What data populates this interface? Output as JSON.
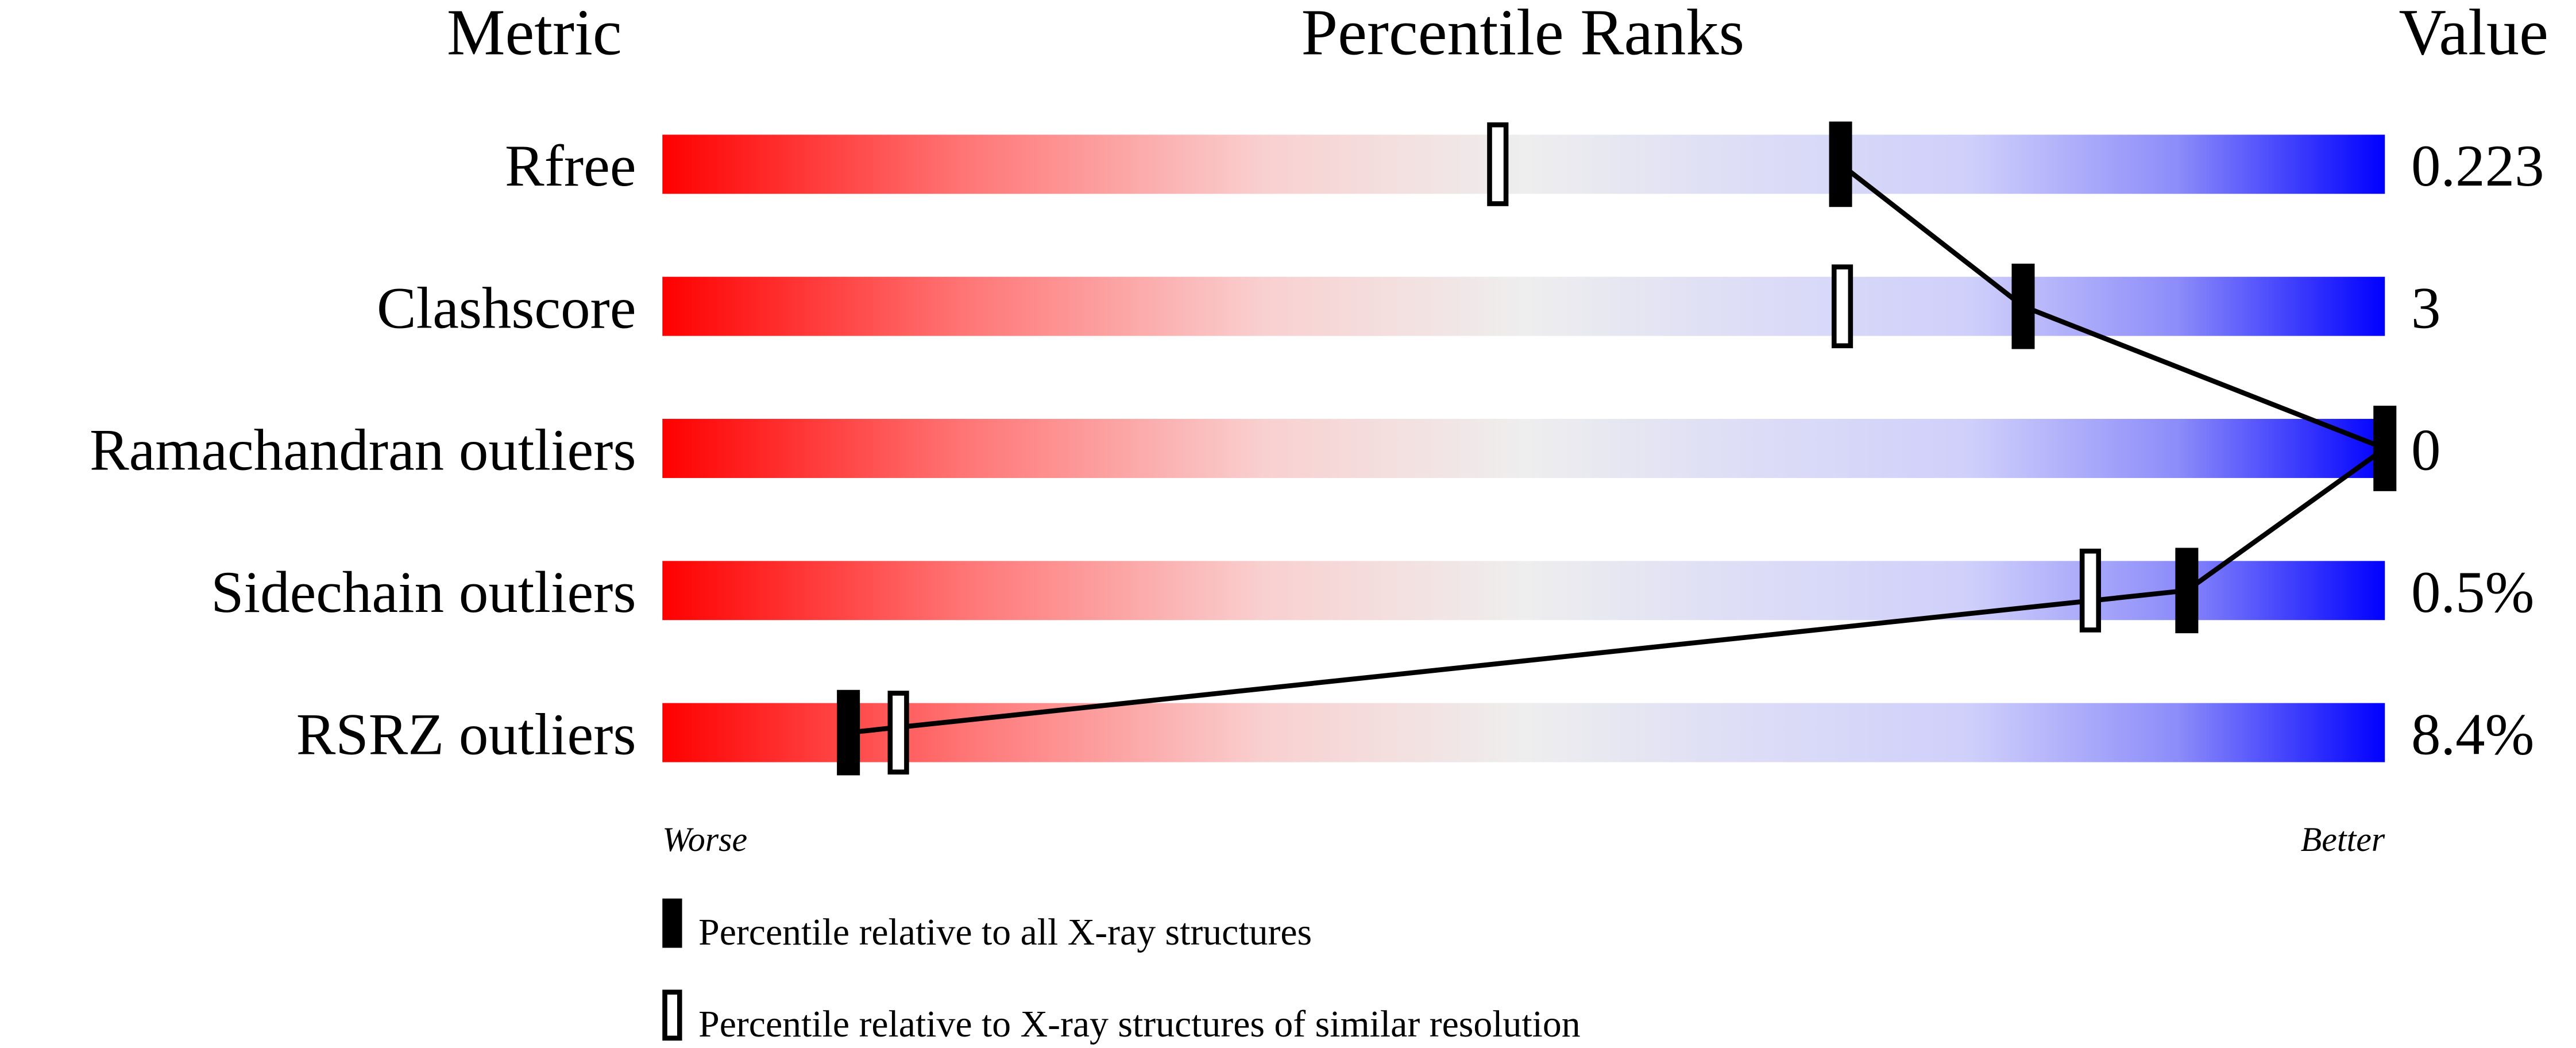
{
  "chart_data": {
    "type": "percentile-bar",
    "headers": {
      "metric": "Metric",
      "ranks": "Percentile Ranks",
      "value": "Value"
    },
    "xlim": [
      0,
      100
    ],
    "axis_labels": {
      "left": "Worse",
      "right": "Better"
    },
    "colors": {
      "worse": "#ff0000",
      "middle": "#eeeeee",
      "better": "#0000ff",
      "marker": "#000000"
    },
    "rows": [
      {
        "metric": "Rfree",
        "value": "0.223",
        "percentile_all": 68.4,
        "percentile_similar": 48.5
      },
      {
        "metric": "Clashscore",
        "value": "3",
        "percentile_all": 79.0,
        "percentile_similar": 68.5
      },
      {
        "metric": "Ramachandran outliers",
        "value": "0",
        "percentile_all": 100,
        "percentile_similar": null
      },
      {
        "metric": "Sidechain outliers",
        "value": "0.5%",
        "percentile_all": 88.5,
        "percentile_similar": 82.9
      },
      {
        "metric": "RSRZ outliers",
        "value": "8.4%",
        "percentile_all": 10.8,
        "percentile_similar": 13.7
      }
    ],
    "legend": [
      {
        "marker": "filled",
        "label": "Percentile relative to all X-ray structures"
      },
      {
        "marker": "open",
        "label": "Percentile relative to X-ray structures of similar resolution"
      }
    ]
  }
}
